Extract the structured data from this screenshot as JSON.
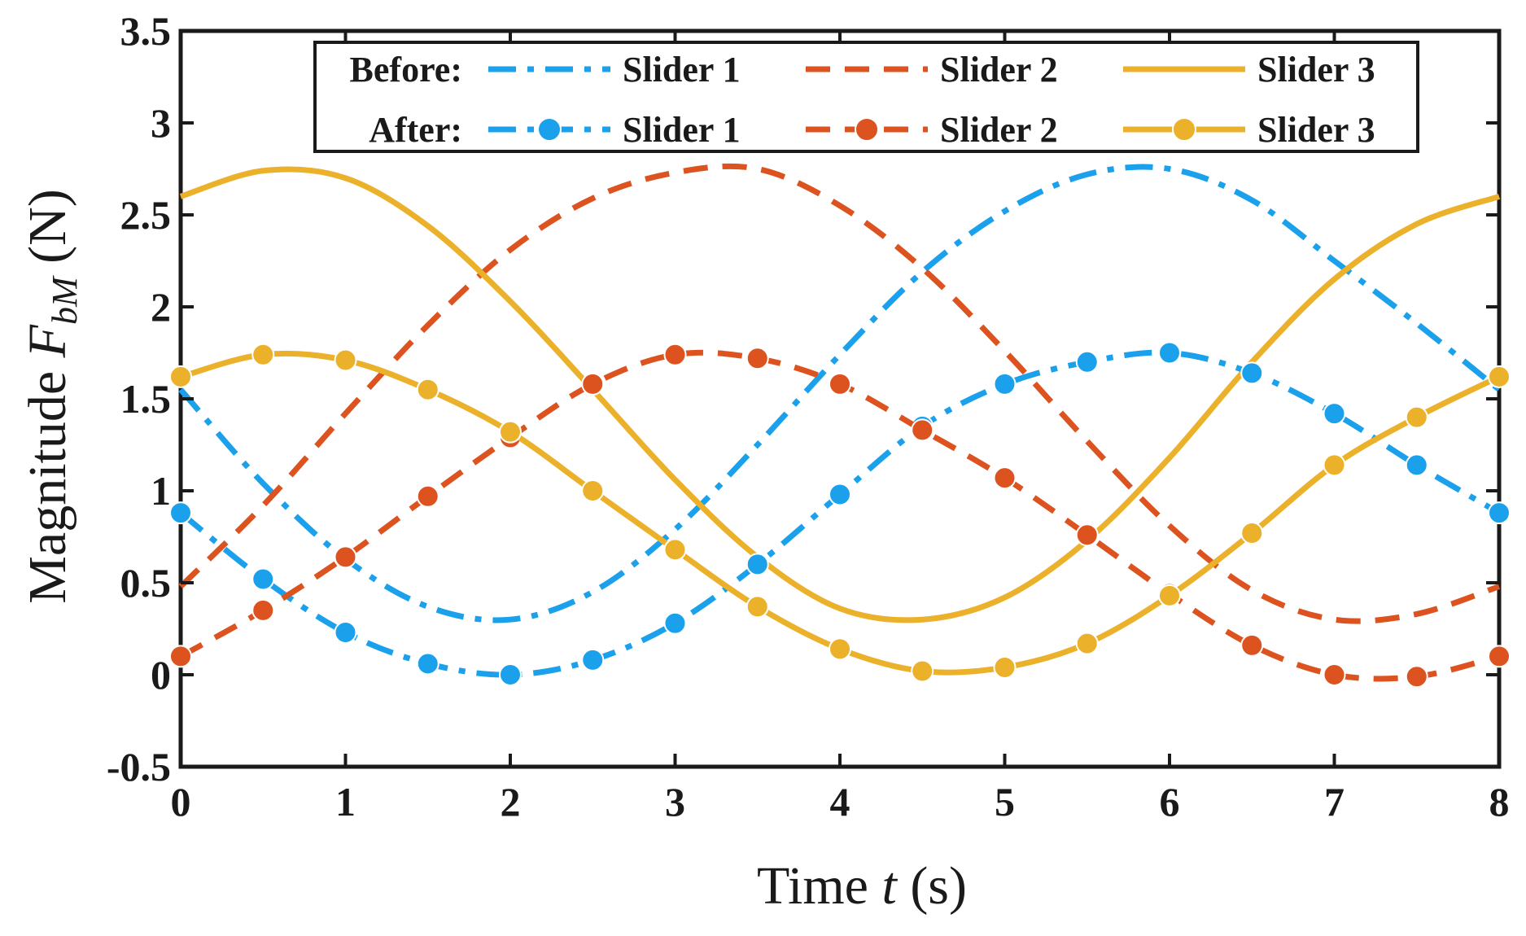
{
  "chart_data": {
    "type": "line",
    "title": "",
    "xlabel_prefix": "Time ",
    "xlabel_var": "t",
    "xlabel_suffix": " (s)",
    "ylabel_prefix": "Magnitude ",
    "ylabel_var": "F",
    "ylabel_sub": "bM",
    "ylabel_suffix": " (N)",
    "xlim": [
      0,
      8
    ],
    "ylim": [
      -0.5,
      3.5
    ],
    "xticks": [
      "0",
      "1",
      "2",
      "3",
      "4",
      "5",
      "6",
      "7",
      "8"
    ],
    "yticks": [
      "-0.5",
      "0",
      "0.5",
      "1",
      "1.5",
      "2",
      "2.5",
      "3",
      "3.5"
    ],
    "grid": false,
    "legend_placement": "top",
    "legend_rows": [
      {
        "label": "Before:",
        "entries": [
          "Slider 1",
          "Slider 2",
          "Slider 3"
        ]
      },
      {
        "label": "After:",
        "entries": [
          "Slider 1",
          "Slider 2",
          "Slider 3"
        ]
      }
    ],
    "colors": {
      "slider1": "#1ba1ec",
      "slider2": "#dc5320",
      "slider3": "#ebb12a",
      "axis": "#1a1a1a"
    },
    "series": [
      {
        "name": "Before: Slider 1",
        "color": "#1ba1ec",
        "style": "dashdot",
        "marker": false,
        "x": [
          0,
          0.5,
          1,
          1.5,
          2,
          2.5,
          3,
          3.5,
          4,
          4.5,
          5,
          5.5,
          6,
          6.5,
          7,
          7.5,
          8
        ],
        "y": [
          1.55,
          1.04,
          0.63,
          0.37,
          0.3,
          0.45,
          0.79,
          1.25,
          1.74,
          2.19,
          2.52,
          2.72,
          2.75,
          2.58,
          2.25,
          1.91,
          1.55
        ]
      },
      {
        "name": "Before: Slider 2",
        "color": "#dc5320",
        "style": "dashed",
        "marker": false,
        "x": [
          0,
          0.5,
          1,
          1.5,
          2,
          2.5,
          3,
          3.5,
          4,
          4.5,
          5,
          5.5,
          6,
          6.5,
          7,
          7.5,
          8
        ],
        "y": [
          0.48,
          0.92,
          1.42,
          1.9,
          2.31,
          2.59,
          2.73,
          2.75,
          2.55,
          2.21,
          1.76,
          1.27,
          0.81,
          0.46,
          0.3,
          0.33,
          0.48
        ]
      },
      {
        "name": "Before: Slider 3",
        "color": "#ebb12a",
        "style": "solid",
        "marker": false,
        "x": [
          0,
          0.5,
          1,
          1.5,
          2,
          2.5,
          3,
          3.5,
          4,
          4.5,
          5,
          5.5,
          6,
          6.5,
          7,
          7.5,
          8
        ],
        "y": [
          2.6,
          2.74,
          2.7,
          2.44,
          2.03,
          1.55,
          1.06,
          0.64,
          0.36,
          0.3,
          0.42,
          0.73,
          1.18,
          1.7,
          2.15,
          2.45,
          2.6
        ]
      },
      {
        "name": "After: Slider 1",
        "color": "#1ba1ec",
        "style": "dashdot",
        "marker": true,
        "x": [
          0,
          0.5,
          1,
          1.5,
          2,
          2.5,
          3,
          3.5,
          4,
          4.5,
          5,
          5.5,
          6,
          6.5,
          7,
          7.5,
          8
        ],
        "y": [
          0.88,
          0.52,
          0.23,
          0.06,
          0.0,
          0.08,
          0.28,
          0.6,
          0.98,
          1.35,
          1.58,
          1.7,
          1.75,
          1.64,
          1.42,
          1.14,
          0.88
        ]
      },
      {
        "name": "After: Slider 2",
        "color": "#dc5320",
        "style": "dashed",
        "marker": true,
        "x": [
          0,
          0.5,
          1,
          1.5,
          2,
          2.5,
          3,
          3.5,
          4,
          4.5,
          5,
          5.5,
          6,
          6.5,
          7,
          7.5,
          8
        ],
        "y": [
          0.1,
          0.35,
          0.64,
          0.97,
          1.29,
          1.58,
          1.74,
          1.72,
          1.58,
          1.33,
          1.07,
          0.76,
          0.44,
          0.16,
          0.0,
          -0.01,
          0.1
        ]
      },
      {
        "name": "After: Slider 3",
        "color": "#ebb12a",
        "style": "solid",
        "marker": true,
        "x": [
          0,
          0.5,
          1,
          1.5,
          2,
          2.5,
          3,
          3.5,
          4,
          4.5,
          5,
          5.5,
          6,
          6.5,
          7,
          7.5,
          8
        ],
        "y": [
          1.62,
          1.74,
          1.71,
          1.55,
          1.32,
          1.0,
          0.68,
          0.37,
          0.14,
          0.02,
          0.04,
          0.17,
          0.43,
          0.77,
          1.14,
          1.4,
          1.62
        ]
      }
    ]
  }
}
